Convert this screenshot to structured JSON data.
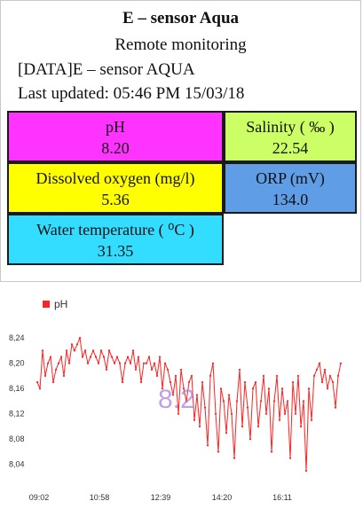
{
  "header": {
    "title": "E – sensor Aqua",
    "subtitle": "Remote monitoring",
    "device": "[DATA]E – sensor AQUA",
    "last_updated": "Last updated: 05:46 PM 15/03/18"
  },
  "tiles": {
    "ph": {
      "label": "pH",
      "value": "8.20",
      "color": "#ff33ff"
    },
    "salinity": {
      "label": "Salinity ( ‰ )",
      "value": "22.54",
      "color": "#ccff66"
    },
    "dissolved_oxygen": {
      "label": "Dissolved oxygen (mg/l)",
      "value": "5.36",
      "color": "#ffff00"
    },
    "orp": {
      "label": "ORP (mV)",
      "value": "134.0",
      "color": "#5f9ee6"
    },
    "water_temperature": {
      "label": "Water temperature ( ⁰C )",
      "value": "31.35",
      "color": "#33ddff"
    }
  },
  "chart_data": {
    "type": "line",
    "legend": "pH",
    "overlay_value": "8.2",
    "series_color": "#ff2222",
    "x_tick_labels": [
      "09:02",
      "10:58",
      "12:39",
      "14:20",
      "16:11"
    ],
    "y_tick_labels": [
      "8,24",
      "8,20",
      "8,16",
      "8,12",
      "8,08",
      "8,04"
    ],
    "ylim": [
      8.02,
      8.25
    ],
    "grid": false,
    "values": [
      8.17,
      8.16,
      8.22,
      8.18,
      8.2,
      8.21,
      8.17,
      8.19,
      8.2,
      8.21,
      8.18,
      8.22,
      8.2,
      8.23,
      8.22,
      8.23,
      8.24,
      8.21,
      8.22,
      8.2,
      8.21,
      8.22,
      8.21,
      8.2,
      8.22,
      8.21,
      8.19,
      8.22,
      8.21,
      8.2,
      8.21,
      8.2,
      8.17,
      8.2,
      8.21,
      8.2,
      8.22,
      8.19,
      8.21,
      8.17,
      8.2,
      8.2,
      8.21,
      8.19,
      8.2,
      8.18,
      8.21,
      8.16,
      8.2,
      8.19,
      8.17,
      8.15,
      8.18,
      8.12,
      8.19,
      8.16,
      8.14,
      8.17,
      8.18,
      8.11,
      8.15,
      8.1,
      8.17,
      8.13,
      8.07,
      8.18,
      8.2,
      8.12,
      8.06,
      8.16,
      8.14,
      8.09,
      8.15,
      8.12,
      8.05,
      8.14,
      8.19,
      8.1,
      8.17,
      8.13,
      8.08,
      8.16,
      8.17,
      8.1,
      8.14,
      8.18,
      8.12,
      8.16,
      8.06,
      8.14,
      8.18,
      8.11,
      8.16,
      8.12,
      8.14,
      8.05,
      8.17,
      8.12,
      8.18,
      8.1,
      8.14,
      8.03,
      8.16,
      8.11,
      8.18,
      8.19,
      8.2,
      8.17,
      8.19,
      8.16,
      8.18,
      8.17,
      8.13,
      8.18,
      8.2
    ]
  }
}
